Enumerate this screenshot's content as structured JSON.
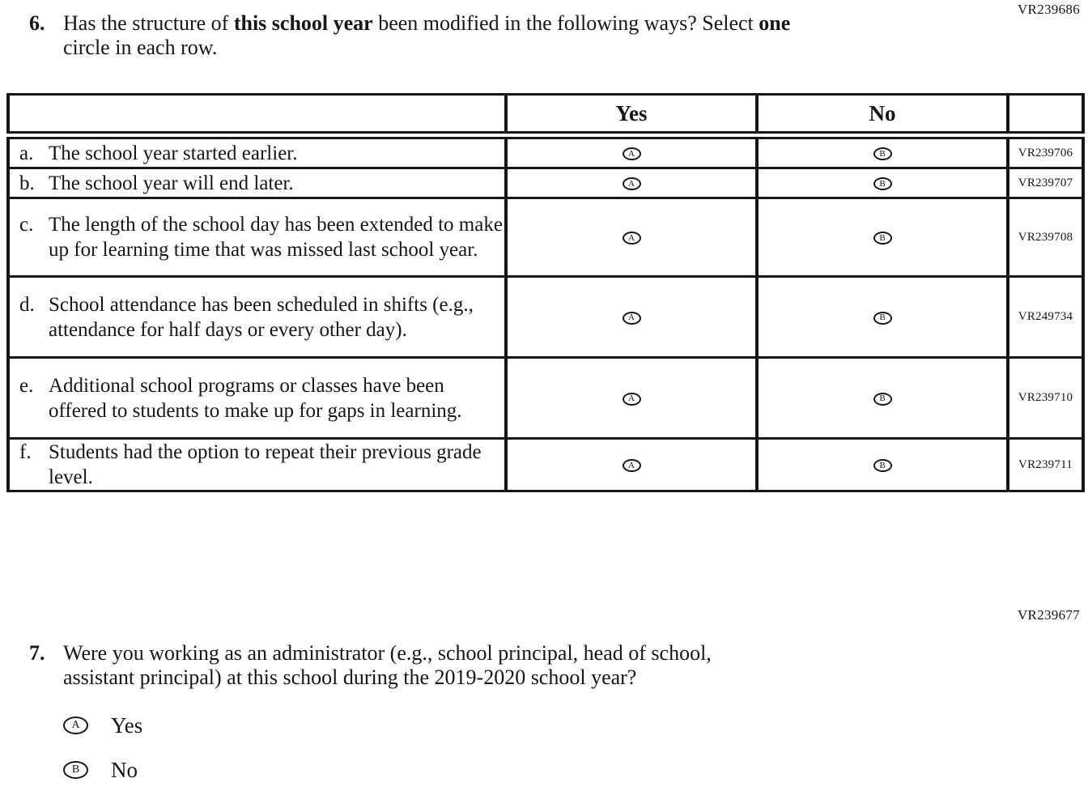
{
  "header": {
    "vr_code": "VR239686"
  },
  "q6": {
    "number": "6.",
    "line1_parts": {
      "p0": "Has the structure of ",
      "p1": "this school year",
      "p2": " been modified in the following ways? Select ",
      "p3": "one"
    },
    "line2": "circle in each row.",
    "table": {
      "col_yes": "Yes",
      "col_no": "No",
      "yes_letter": "A",
      "no_letter": "B",
      "rows": [
        {
          "letter": "a.",
          "text": "The school year started earlier.",
          "vr": "VR239706"
        },
        {
          "letter": "b.",
          "text": "The school year will end later.",
          "vr": "VR239707"
        },
        {
          "letter": "c.",
          "text": "The length of the school day has been extended to make up for learning time that was missed last school year.",
          "vr": "VR239708"
        },
        {
          "letter": "d.",
          "text": "School attendance has been scheduled in shifts (e.g., attendance for half days or every other day).",
          "vr": "VR249734"
        },
        {
          "letter": "e.",
          "text": "Additional school programs or classes have been offered to students to make up for gaps in learning.",
          "vr": "VR239710"
        },
        {
          "letter": "f.",
          "text": "Students had the option to repeat their previous grade level.",
          "vr": "VR239711"
        }
      ]
    }
  },
  "q7": {
    "vr_code": "VR239677",
    "number": "7.",
    "line1": "Were you working as an administrator (e.g., school principal, head of school,",
    "line2": "assistant principal) at this school during the 2019-2020 school year?",
    "options": [
      {
        "letter": "A",
        "label": "Yes"
      },
      {
        "letter": "B",
        "label": "No"
      }
    ]
  }
}
